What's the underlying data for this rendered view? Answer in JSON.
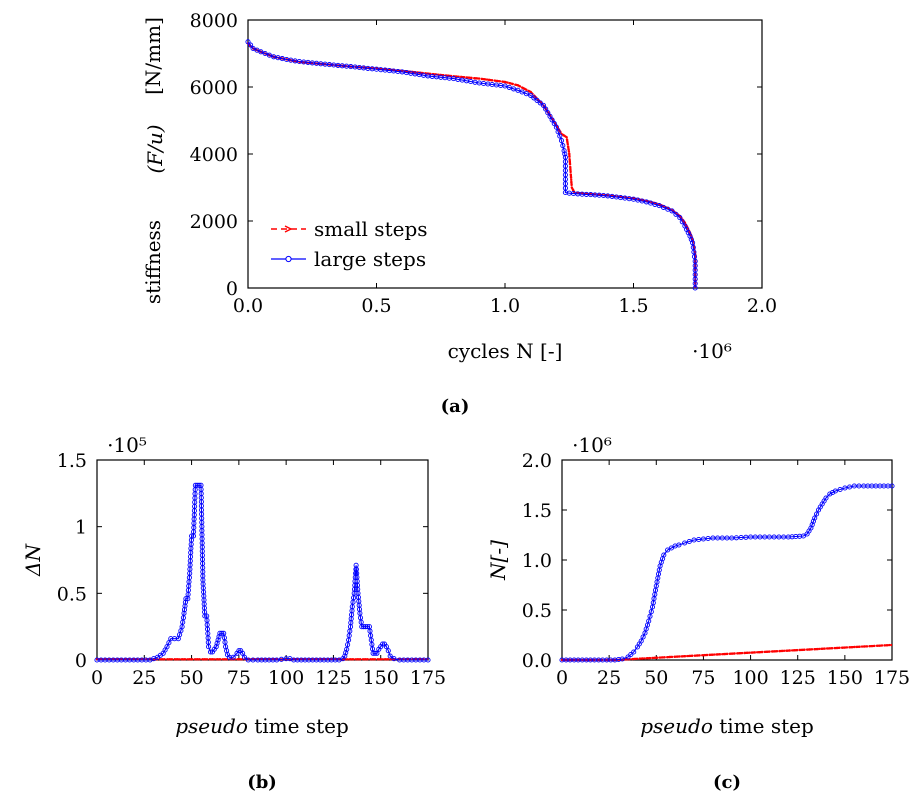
{
  "chart_data": [
    {
      "id": "a",
      "type": "line",
      "caption": "(a)",
      "ylabel_prefix": "stiffness",
      "ylabel_math": "(F/u)",
      "ylabel_unit": "[N/mm]",
      "xlabel": "cycles N [-]",
      "x_exponent": "·10⁶",
      "xlim": [
        0,
        2.0
      ],
      "ylim": [
        0,
        8000
      ],
      "xticks": [
        "0.0",
        "0.5",
        "1.0",
        "1.5",
        "2.0"
      ],
      "yticks": [
        "0",
        "2000",
        "4000",
        "6000",
        "8000"
      ],
      "legend": "lower-left",
      "series": [
        {
          "name": "small steps",
          "color": "#ff0000",
          "style": "dashed",
          "x": [
            0.0,
            0.02,
            0.05,
            0.1,
            0.2,
            0.3,
            0.4,
            0.5,
            0.6,
            0.7,
            0.8,
            0.9,
            0.95,
            1.0,
            1.05,
            1.1,
            1.15,
            1.2,
            1.22,
            1.24,
            1.25,
            1.26,
            1.27,
            1.3,
            1.35,
            1.4,
            1.45,
            1.5,
            1.55,
            1.6,
            1.65,
            1.68,
            1.7,
            1.72,
            1.73,
            1.74,
            1.74
          ],
          "y": [
            7300,
            7150,
            7050,
            6900,
            6750,
            6680,
            6610,
            6550,
            6480,
            6400,
            6320,
            6250,
            6200,
            6150,
            6050,
            5850,
            5450,
            4850,
            4600,
            4500,
            4000,
            3000,
            2850,
            2820,
            2790,
            2760,
            2720,
            2670,
            2600,
            2500,
            2320,
            2150,
            1950,
            1650,
            1450,
            1000,
            0
          ]
        },
        {
          "name": "large steps",
          "color": "#0000ff",
          "style": "solid-circle",
          "x": [
            0.0,
            0.02,
            0.05,
            0.1,
            0.15,
            0.2,
            0.3,
            0.4,
            0.5,
            0.6,
            0.7,
            0.8,
            0.9,
            1.0,
            1.05,
            1.1,
            1.15,
            1.2,
            1.22,
            1.23,
            1.235,
            1.235,
            1.25,
            1.3,
            1.35,
            1.4,
            1.45,
            1.5,
            1.55,
            1.6,
            1.65,
            1.68,
            1.7,
            1.72,
            1.73,
            1.74,
            1.74
          ],
          "y": [
            7350,
            7150,
            7050,
            6900,
            6820,
            6760,
            6680,
            6610,
            6530,
            6450,
            6330,
            6250,
            6120,
            6030,
            5900,
            5750,
            5450,
            4800,
            4400,
            4100,
            3900,
            2850,
            2830,
            2800,
            2780,
            2750,
            2700,
            2650,
            2570,
            2460,
            2300,
            2100,
            1850,
            1550,
            1350,
            800,
            0
          ]
        }
      ]
    },
    {
      "id": "b",
      "type": "line",
      "caption": "(b)",
      "ylabel": "ΔN",
      "xlabel_italic": "pseudo",
      "xlabel_rest": " time step",
      "y_exponent": "·10⁵",
      "xlim": [
        0,
        175
      ],
      "ylim": [
        0,
        1.5
      ],
      "xticks": [
        "0",
        "25",
        "50",
        "75",
        "100",
        "125",
        "150",
        "175"
      ],
      "yticks": [
        "0",
        "0.5",
        "1",
        "1.5"
      ],
      "series": [
        {
          "name": "small steps",
          "color": "#ff0000",
          "style": "dashed",
          "x": [
            0,
            175
          ],
          "y": [
            0.005,
            0.005
          ]
        },
        {
          "name": "large steps",
          "color": "#0000ff",
          "style": "solid-circle",
          "x": [
            0,
            28,
            32,
            35,
            37,
            39,
            41,
            43,
            45,
            46,
            47,
            48,
            49,
            50,
            51,
            52,
            53,
            54,
            55,
            56,
            57,
            58,
            59,
            60,
            61,
            62,
            63,
            64,
            65,
            66,
            67,
            68,
            69,
            70,
            72,
            74,
            75,
            76,
            77,
            78,
            80,
            85,
            95,
            100,
            102,
            104,
            110,
            120,
            128,
            130,
            131,
            132,
            133,
            134,
            135,
            136,
            137,
            138,
            139,
            140,
            141,
            142,
            143,
            144,
            145,
            146,
            147,
            148,
            149,
            150,
            151,
            152,
            153,
            154,
            155,
            157,
            160,
            175
          ],
          "y": [
            0,
            0,
            0.02,
            0.05,
            0.1,
            0.16,
            0.16,
            0.16,
            0.25,
            0.35,
            0.46,
            0.46,
            0.65,
            0.93,
            0.93,
            1.31,
            1.31,
            1.31,
            1.31,
            0.6,
            0.33,
            0.33,
            0.1,
            0.06,
            0.06,
            0.08,
            0.1,
            0.15,
            0.2,
            0.2,
            0.2,
            0.1,
            0.04,
            0.02,
            0.02,
            0.05,
            0.07,
            0.07,
            0.05,
            0.02,
            0,
            0,
            0,
            0.01,
            0.01,
            0,
            0,
            0,
            0,
            0.01,
            0.03,
            0.08,
            0.15,
            0.25,
            0.4,
            0.5,
            0.71,
            0.5,
            0.35,
            0.25,
            0.25,
            0.25,
            0.25,
            0.25,
            0.15,
            0.05,
            0.05,
            0.05,
            0.08,
            0.1,
            0.12,
            0.12,
            0.1,
            0.07,
            0.03,
            0.01,
            0,
            0
          ]
        }
      ]
    },
    {
      "id": "c",
      "type": "line",
      "caption": "(c)",
      "ylabel": "N[-]",
      "xlabel_italic": "pseudo",
      "xlabel_rest": " time step",
      "y_exponent": "·10⁶",
      "xlim": [
        0,
        175
      ],
      "ylim": [
        0,
        2.0
      ],
      "xticks": [
        "0",
        "25",
        "50",
        "75",
        "100",
        "125",
        "150",
        "175"
      ],
      "yticks": [
        "0.0",
        "0.5",
        "1.0",
        "1.5",
        "2.0"
      ],
      "series": [
        {
          "name": "small steps",
          "color": "#ff0000",
          "style": "dashed",
          "x": [
            0,
            28,
            175
          ],
          "y": [
            0.0,
            0.0,
            0.15
          ]
        },
        {
          "name": "large steps",
          "color": "#0000ff",
          "style": "solid-circle",
          "x": [
            0,
            28,
            32,
            35,
            38,
            40,
            42,
            44,
            46,
            48,
            50,
            52,
            54,
            56,
            58,
            60,
            62,
            65,
            70,
            75,
            80,
            90,
            100,
            110,
            120,
            128,
            130,
            132,
            134,
            136,
            138,
            140,
            142,
            145,
            150,
            155,
            160,
            175
          ],
          "y": [
            0,
            0,
            0.01,
            0.03,
            0.08,
            0.13,
            0.19,
            0.27,
            0.39,
            0.53,
            0.74,
            0.94,
            1.05,
            1.1,
            1.12,
            1.14,
            1.15,
            1.17,
            1.2,
            1.21,
            1.22,
            1.22,
            1.23,
            1.23,
            1.23,
            1.24,
            1.26,
            1.32,
            1.42,
            1.5,
            1.56,
            1.62,
            1.66,
            1.69,
            1.72,
            1.74,
            1.74,
            1.74
          ]
        }
      ]
    }
  ]
}
